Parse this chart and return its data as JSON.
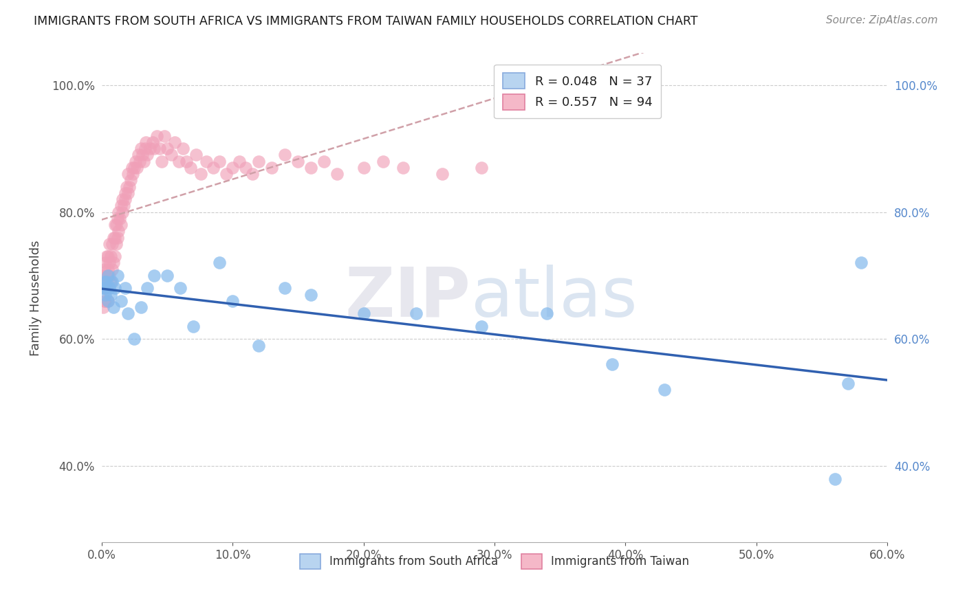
{
  "title": "IMMIGRANTS FROM SOUTH AFRICA VS IMMIGRANTS FROM TAIWAN FAMILY HOUSEHOLDS CORRELATION CHART",
  "source": "Source: ZipAtlas.com",
  "ylabel": "Family Households",
  "xlim": [
    0.0,
    0.6
  ],
  "ylim": [
    0.28,
    1.05
  ],
  "x_ticks": [
    0.0,
    0.1,
    0.2,
    0.3,
    0.4,
    0.5,
    0.6
  ],
  "y_ticks": [
    0.4,
    0.6,
    0.8,
    1.0
  ],
  "legend_entry1": "R = 0.048   N = 37",
  "legend_entry2": "R = 0.557   N = 94",
  "legend_color1": "#b8d4f0",
  "legend_color2": "#f5b8c8",
  "south_africa_color": "#82b8ec",
  "south_africa_edge": "#5590d0",
  "taiwan_color": "#f0a0b8",
  "taiwan_edge": "#e06080",
  "sa_line_color": "#3060b0",
  "taiwan_trend_color": "#d08090",
  "watermark_zip_color": "#d8d8e8",
  "watermark_atlas_color": "#c8d8ec",
  "south_africa_R": 0.048,
  "taiwan_R": 0.557,
  "sa_x": [
    0.001,
    0.002,
    0.003,
    0.003,
    0.004,
    0.005,
    0.005,
    0.006,
    0.007,
    0.008,
    0.009,
    0.01,
    0.012,
    0.015,
    0.018,
    0.02,
    0.025,
    0.03,
    0.035,
    0.04,
    0.05,
    0.06,
    0.07,
    0.09,
    0.1,
    0.12,
    0.14,
    0.16,
    0.2,
    0.24,
    0.29,
    0.34,
    0.39,
    0.43,
    0.56,
    0.57,
    0.58
  ],
  "sa_y": [
    0.68,
    0.69,
    0.67,
    0.68,
    0.69,
    0.7,
    0.66,
    0.68,
    0.67,
    0.69,
    0.65,
    0.68,
    0.7,
    0.66,
    0.68,
    0.64,
    0.6,
    0.65,
    0.68,
    0.7,
    0.7,
    0.68,
    0.62,
    0.72,
    0.66,
    0.59,
    0.68,
    0.67,
    0.64,
    0.64,
    0.62,
    0.64,
    0.56,
    0.52,
    0.38,
    0.53,
    0.72
  ],
  "tw_x": [
    0.001,
    0.001,
    0.002,
    0.002,
    0.002,
    0.003,
    0.003,
    0.003,
    0.004,
    0.004,
    0.004,
    0.005,
    0.005,
    0.005,
    0.006,
    0.006,
    0.006,
    0.007,
    0.007,
    0.008,
    0.008,
    0.009,
    0.009,
    0.01,
    0.01,
    0.01,
    0.011,
    0.011,
    0.012,
    0.012,
    0.013,
    0.013,
    0.014,
    0.015,
    0.015,
    0.016,
    0.016,
    0.017,
    0.018,
    0.018,
    0.019,
    0.02,
    0.02,
    0.021,
    0.022,
    0.023,
    0.024,
    0.025,
    0.026,
    0.027,
    0.028,
    0.029,
    0.03,
    0.031,
    0.032,
    0.033,
    0.034,
    0.035,
    0.037,
    0.039,
    0.04,
    0.042,
    0.044,
    0.046,
    0.048,
    0.05,
    0.053,
    0.056,
    0.059,
    0.062,
    0.065,
    0.068,
    0.072,
    0.076,
    0.08,
    0.085,
    0.09,
    0.095,
    0.1,
    0.105,
    0.11,
    0.115,
    0.12,
    0.13,
    0.14,
    0.15,
    0.16,
    0.17,
    0.18,
    0.2,
    0.215,
    0.23,
    0.26,
    0.29
  ],
  "tw_y": [
    0.65,
    0.7,
    0.66,
    0.71,
    0.68,
    0.69,
    0.72,
    0.66,
    0.7,
    0.73,
    0.68,
    0.66,
    0.71,
    0.73,
    0.7,
    0.72,
    0.75,
    0.69,
    0.73,
    0.71,
    0.75,
    0.72,
    0.76,
    0.73,
    0.76,
    0.78,
    0.75,
    0.78,
    0.76,
    0.79,
    0.77,
    0.8,
    0.79,
    0.78,
    0.81,
    0.8,
    0.82,
    0.81,
    0.83,
    0.82,
    0.84,
    0.83,
    0.86,
    0.84,
    0.85,
    0.87,
    0.86,
    0.87,
    0.88,
    0.87,
    0.89,
    0.88,
    0.9,
    0.89,
    0.88,
    0.9,
    0.91,
    0.89,
    0.9,
    0.91,
    0.9,
    0.92,
    0.9,
    0.88,
    0.92,
    0.9,
    0.89,
    0.91,
    0.88,
    0.9,
    0.88,
    0.87,
    0.89,
    0.86,
    0.88,
    0.87,
    0.88,
    0.86,
    0.87,
    0.88,
    0.87,
    0.86,
    0.88,
    0.87,
    0.89,
    0.88,
    0.87,
    0.88,
    0.86,
    0.87,
    0.88,
    0.87,
    0.86,
    0.87
  ]
}
